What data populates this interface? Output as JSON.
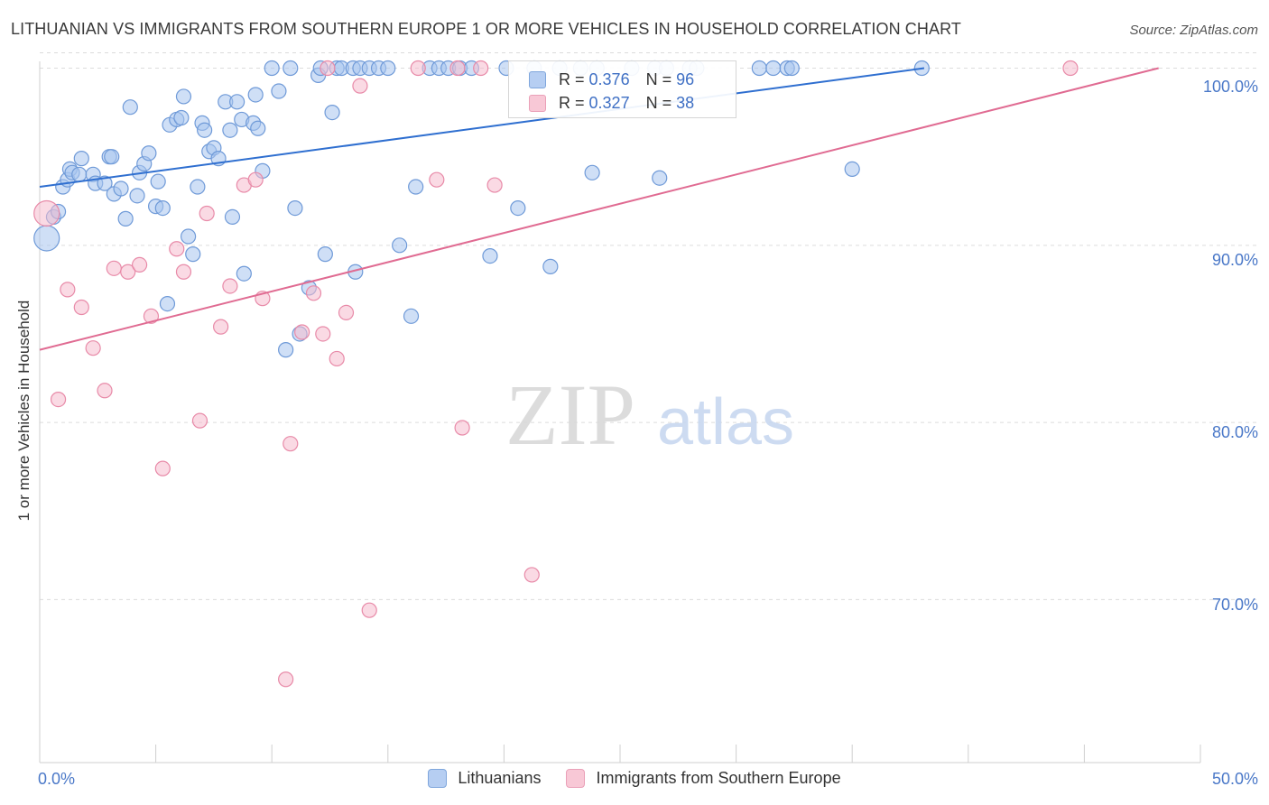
{
  "title": "LITHUANIAN VS IMMIGRANTS FROM SOUTHERN EUROPE 1 OR MORE VEHICLES IN HOUSEHOLD CORRELATION CHART",
  "source": "Source: ZipAtlas.com",
  "watermark": {
    "zip": "ZIP",
    "atlas": "atlas"
  },
  "colors": {
    "blue_fill": "#a8c4ee",
    "blue_stroke": "#6f9ad8",
    "blue_line": "#2f6fd0",
    "pink_fill": "#f6bccd",
    "pink_stroke": "#e88aa8",
    "pink_line": "#e06b92",
    "grid": "#dcdcdc",
    "tick_label": "#4a78c8"
  },
  "legend": {
    "rows": [
      {
        "r_label": "R =",
        "r_value": "0.376",
        "n_label": "N =",
        "n_value": "96"
      },
      {
        "r_label": "R =",
        "r_value": "0.327",
        "n_label": "N =",
        "n_value": "38"
      }
    ]
  },
  "bottom_legend": [
    "Lithuanians",
    "Immigrants from Southern Europe"
  ],
  "chart_data": {
    "type": "scatter",
    "title": "LITHUANIAN VS IMMIGRANTS FROM SOUTHERN EUROPE 1 OR MORE VEHICLES IN HOUSEHOLD CORRELATION CHART",
    "xlabel": "",
    "ylabel": "1 or more Vehicles in Household",
    "xlim": [
      0,
      50
    ],
    "ylim": [
      60.8,
      101.3
    ],
    "x_tick_labels": [
      "0.0%",
      "50.0%"
    ],
    "y_ticks": [
      70,
      80,
      90,
      100
    ],
    "y_tick_labels": [
      "70.0%",
      "80.0%",
      "90.0%",
      "100.0%"
    ],
    "grid": "horizontal dashed",
    "legend_position": "top-center",
    "series": [
      {
        "name": "Lithuanians",
        "R": 0.376,
        "N": 96,
        "trend": {
          "x": [
            0,
            38.1
          ],
          "y": [
            93.3,
            100.0
          ]
        },
        "points": [
          [
            0.3,
            90.4
          ],
          [
            0.6,
            91.6
          ],
          [
            0.8,
            91.9
          ],
          [
            1.0,
            93.3
          ],
          [
            1.2,
            93.7
          ],
          [
            1.3,
            94.3
          ],
          [
            1.4,
            94.1
          ],
          [
            1.7,
            94.0
          ],
          [
            1.8,
            94.9
          ],
          [
            2.3,
            94.0
          ],
          [
            2.4,
            93.5
          ],
          [
            2.8,
            93.5
          ],
          [
            3.0,
            95.0
          ],
          [
            3.1,
            95.0
          ],
          [
            3.2,
            92.9
          ],
          [
            3.5,
            93.2
          ],
          [
            3.7,
            91.5
          ],
          [
            3.9,
            97.8
          ],
          [
            4.2,
            92.8
          ],
          [
            4.3,
            94.1
          ],
          [
            4.5,
            94.6
          ],
          [
            4.7,
            95.2
          ],
          [
            5.0,
            92.2
          ],
          [
            5.1,
            93.6
          ],
          [
            5.3,
            92.1
          ],
          [
            5.5,
            86.7
          ],
          [
            5.6,
            96.8
          ],
          [
            5.9,
            97.1
          ],
          [
            6.1,
            97.2
          ],
          [
            6.2,
            98.4
          ],
          [
            6.4,
            90.5
          ],
          [
            6.6,
            89.5
          ],
          [
            6.8,
            93.3
          ],
          [
            7.0,
            96.9
          ],
          [
            7.1,
            96.5
          ],
          [
            7.3,
            95.3
          ],
          [
            7.5,
            95.5
          ],
          [
            7.7,
            94.9
          ],
          [
            8.0,
            98.1
          ],
          [
            8.2,
            96.5
          ],
          [
            8.3,
            91.6
          ],
          [
            8.5,
            98.1
          ],
          [
            8.7,
            97.1
          ],
          [
            8.8,
            88.4
          ],
          [
            9.2,
            96.9
          ],
          [
            9.3,
            98.5
          ],
          [
            9.4,
            96.6
          ],
          [
            9.6,
            94.2
          ],
          [
            10.0,
            100.0
          ],
          [
            10.3,
            98.7
          ],
          [
            10.6,
            84.1
          ],
          [
            10.8,
            100.0
          ],
          [
            11.0,
            92.1
          ],
          [
            11.2,
            85.0
          ],
          [
            11.6,
            87.6
          ],
          [
            12.0,
            99.6
          ],
          [
            12.1,
            100.0
          ],
          [
            12.3,
            89.5
          ],
          [
            12.6,
            97.5
          ],
          [
            12.8,
            100.0
          ],
          [
            13.0,
            100.0
          ],
          [
            13.5,
            100.0
          ],
          [
            13.6,
            88.5
          ],
          [
            13.8,
            100.0
          ],
          [
            14.2,
            100.0
          ],
          [
            14.6,
            100.0
          ],
          [
            15.0,
            100.0
          ],
          [
            15.5,
            90.0
          ],
          [
            16.0,
            86.0
          ],
          [
            16.2,
            93.3
          ],
          [
            16.8,
            100.0
          ],
          [
            17.2,
            100.0
          ],
          [
            17.6,
            100.0
          ],
          [
            18.1,
            100.0
          ],
          [
            18.6,
            100.0
          ],
          [
            19.4,
            89.4
          ],
          [
            20.1,
            100.0
          ],
          [
            20.6,
            92.1
          ],
          [
            21.3,
            100.0
          ],
          [
            22.0,
            88.8
          ],
          [
            22.4,
            100.0
          ],
          [
            23.3,
            100.0
          ],
          [
            23.8,
            94.1
          ],
          [
            24.0,
            100.0
          ],
          [
            25.5,
            100.0
          ],
          [
            26.5,
            100.0
          ],
          [
            26.7,
            93.8
          ],
          [
            27.0,
            100.0
          ],
          [
            28.0,
            100.0
          ],
          [
            28.3,
            100.0
          ],
          [
            31.0,
            100.0
          ],
          [
            31.6,
            100.0
          ],
          [
            32.2,
            100.0
          ],
          [
            32.4,
            100.0
          ],
          [
            35.0,
            94.3
          ],
          [
            38.0,
            100.0
          ]
        ]
      },
      {
        "name": "Immigrants from Southern Europe",
        "R": 0.327,
        "N": 38,
        "trend": {
          "x": [
            0,
            48.2
          ],
          "y": [
            84.1,
            100.0
          ]
        },
        "points": [
          [
            0.3,
            91.8
          ],
          [
            0.8,
            81.3
          ],
          [
            1.2,
            87.5
          ],
          [
            1.8,
            86.5
          ],
          [
            2.3,
            84.2
          ],
          [
            2.8,
            81.8
          ],
          [
            3.2,
            88.7
          ],
          [
            3.8,
            88.5
          ],
          [
            4.3,
            88.9
          ],
          [
            4.8,
            86.0
          ],
          [
            5.3,
            77.4
          ],
          [
            5.9,
            89.8
          ],
          [
            6.2,
            88.5
          ],
          [
            6.9,
            80.1
          ],
          [
            7.2,
            91.8
          ],
          [
            7.8,
            85.4
          ],
          [
            8.2,
            87.7
          ],
          [
            8.8,
            93.4
          ],
          [
            9.3,
            93.7
          ],
          [
            9.6,
            87.0
          ],
          [
            10.6,
            65.5
          ],
          [
            10.8,
            78.8
          ],
          [
            11.3,
            85.1
          ],
          [
            11.8,
            87.3
          ],
          [
            12.2,
            85.0
          ],
          [
            12.4,
            100.0
          ],
          [
            12.8,
            83.6
          ],
          [
            13.2,
            86.2
          ],
          [
            13.8,
            99.0
          ],
          [
            14.2,
            69.4
          ],
          [
            16.3,
            100.0
          ],
          [
            17.1,
            93.7
          ],
          [
            18.0,
            100.0
          ],
          [
            18.2,
            79.7
          ],
          [
            19.0,
            100.0
          ],
          [
            19.6,
            93.4
          ],
          [
            21.2,
            71.4
          ],
          [
            44.4,
            100.0
          ]
        ]
      }
    ]
  }
}
